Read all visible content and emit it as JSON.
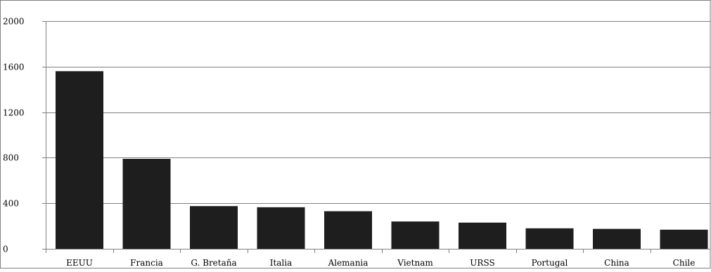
{
  "chart_data": {
    "type": "bar",
    "categories": [
      "EEUU",
      "Francia",
      "G. Bretaña",
      "Italia",
      "Alemania",
      "Vietnam",
      "URSS",
      "Portugal",
      "China",
      "Chile"
    ],
    "values": [
      1560,
      790,
      375,
      365,
      330,
      240,
      230,
      180,
      175,
      168
    ],
    "ylim": [
      0,
      2000
    ],
    "yticks": [
      "0",
      "400",
      "800",
      "1200",
      "1600",
      "2000"
    ],
    "grid": true,
    "legend": "none",
    "bar_color": "#1e1e1e",
    "gridline_color": "#808080",
    "frame_color": "#808080"
  }
}
